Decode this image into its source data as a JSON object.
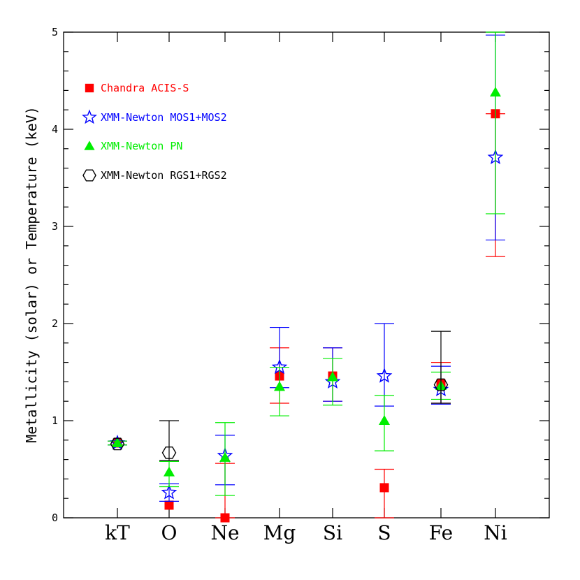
{
  "chart_data": {
    "type": "scatter",
    "title": "",
    "xlabel": "",
    "ylabel": "Metallicity (solar) or Temperature (keV)",
    "categories": [
      "kT",
      "O",
      "Ne",
      "Mg",
      "Si",
      "S",
      "Fe",
      "Ni"
    ],
    "ylim": [
      0,
      5
    ],
    "yticks": [
      0,
      1,
      2,
      3,
      4,
      5
    ],
    "grid": false,
    "legend_position": "top-left",
    "series": [
      {
        "name": "Chandra ACIS-S",
        "color": "#ff0000",
        "marker": "filled-square",
        "points": [
          {
            "x": "kT",
            "y": 0.77,
            "ylo": 0.75,
            "yhi": 0.79
          },
          {
            "x": "O",
            "y": 0.13,
            "ylo": 0.13,
            "yhi": 0.13
          },
          {
            "x": "Ne",
            "y": 0.0,
            "ylo": 0.0,
            "yhi": 0.56
          },
          {
            "x": "Mg",
            "y": 1.46,
            "ylo": 1.18,
            "yhi": 1.75
          },
          {
            "x": "Si",
            "y": 1.46,
            "ylo": 1.2,
            "yhi": 1.75
          },
          {
            "x": "S",
            "y": 0.31,
            "ylo": 0.0,
            "yhi": 0.5
          },
          {
            "x": "Fe",
            "y": 1.38,
            "ylo": 1.18,
            "yhi": 1.6
          },
          {
            "x": "Ni",
            "y": 4.16,
            "ylo": 2.69,
            "yhi": 4.16
          }
        ]
      },
      {
        "name": "XMM-Newton MOS1+MOS2",
        "color": "#0000ff",
        "marker": "open-star",
        "points": [
          {
            "x": "kT",
            "y": 0.77,
            "ylo": 0.75,
            "yhi": 0.79
          },
          {
            "x": "O",
            "y": 0.26,
            "ylo": 0.17,
            "yhi": 0.35
          },
          {
            "x": "Ne",
            "y": 0.64,
            "ylo": 0.34,
            "yhi": 0.85
          },
          {
            "x": "Mg",
            "y": 1.55,
            "ylo": 1.34,
            "yhi": 1.96
          },
          {
            "x": "Si",
            "y": 1.4,
            "ylo": 1.2,
            "yhi": 1.75
          },
          {
            "x": "S",
            "y": 1.46,
            "ylo": 1.15,
            "yhi": 2.0
          },
          {
            "x": "Fe",
            "y": 1.32,
            "ylo": 1.17,
            "yhi": 1.56
          },
          {
            "x": "Ni",
            "y": 3.71,
            "ylo": 2.86,
            "yhi": 4.97
          }
        ]
      },
      {
        "name": "XMM-Newton PN",
        "color": "#00ee00",
        "marker": "filled-triangle",
        "points": [
          {
            "x": "kT",
            "y": 0.77,
            "ylo": 0.75,
            "yhi": 0.79
          },
          {
            "x": "O",
            "y": 0.47,
            "ylo": 0.32,
            "yhi": 0.58
          },
          {
            "x": "Ne",
            "y": 0.62,
            "ylo": 0.23,
            "yhi": 0.98
          },
          {
            "x": "Mg",
            "y": 1.35,
            "ylo": 1.05,
            "yhi": 1.55
          },
          {
            "x": "Si",
            "y": 1.45,
            "ylo": 1.16,
            "yhi": 1.64
          },
          {
            "x": "S",
            "y": 1.0,
            "ylo": 0.69,
            "yhi": 1.26
          },
          {
            "x": "Fe",
            "y": 1.36,
            "ylo": 1.22,
            "yhi": 1.5
          },
          {
            "x": "Ni",
            "y": 4.38,
            "ylo": 3.13,
            "yhi": 5.0
          }
        ]
      },
      {
        "name": "XMM-Newton RGS1+RGS2",
        "color": "#000000",
        "marker": "open-hexagon",
        "points": [
          {
            "x": "kT",
            "y": 0.76,
            "ylo": 0.76,
            "yhi": 0.76
          },
          {
            "x": "O",
            "y": 0.67,
            "ylo": 0.59,
            "yhi": 1.0
          },
          {
            "x": "Fe",
            "y": 1.37,
            "ylo": 1.18,
            "yhi": 1.92
          }
        ]
      }
    ]
  }
}
